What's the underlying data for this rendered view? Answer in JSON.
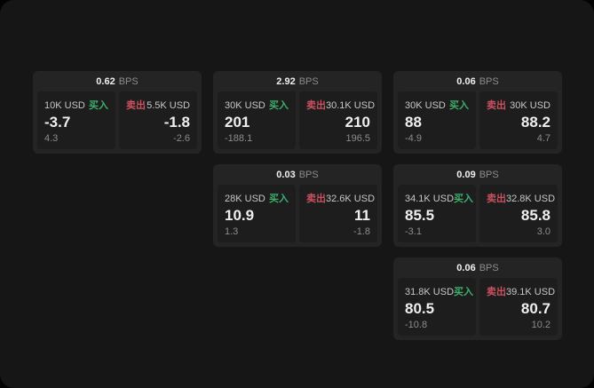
{
  "colors": {
    "panel-bg": "#161616",
    "card-bg": "#242424",
    "tile-bg": "#1d1d1d",
    "buy-green": "#3fae6b",
    "sell-red": "#c95160",
    "text-primary": "#efefef",
    "text-secondary": "#c7c7c7",
    "text-muted": "#8c8c8c"
  },
  "labels": {
    "buy": "买入",
    "sell": "卖出",
    "bps_unit": "BPS"
  },
  "cards": [
    {
      "col": 1,
      "row": 1,
      "bps": "0.62",
      "buy": {
        "amount": "10K USD",
        "price": "-3.7",
        "change": "4.3"
      },
      "sell": {
        "amount": "5.5K USD",
        "price": "-1.8",
        "change": "-2.6"
      }
    },
    {
      "col": 2,
      "row": 1,
      "bps": "2.92",
      "buy": {
        "amount": "30K USD",
        "price": "201",
        "change": "-188.1"
      },
      "sell": {
        "amount": "30.1K USD",
        "price": "210",
        "change": "196.5"
      }
    },
    {
      "col": 3,
      "row": 1,
      "bps": "0.06",
      "buy": {
        "amount": "30K USD",
        "price": "88",
        "change": "-4.9"
      },
      "sell": {
        "amount": "30K USD",
        "price": "88.2",
        "change": "4.7"
      }
    },
    {
      "col": 2,
      "row": 2,
      "bps": "0.03",
      "buy": {
        "amount": "28K USD",
        "price": "10.9",
        "change": "1.3"
      },
      "sell": {
        "amount": "32.6K USD",
        "price": "11",
        "change": "-1.8"
      }
    },
    {
      "col": 3,
      "row": 2,
      "bps": "0.09",
      "buy": {
        "amount": "34.1K USD",
        "price": "85.5",
        "change": "-3.1"
      },
      "sell": {
        "amount": "32.8K USD",
        "price": "85.8",
        "change": "3.0"
      }
    },
    {
      "col": 3,
      "row": 3,
      "bps": "0.06",
      "buy": {
        "amount": "31.8K USD",
        "price": "80.5",
        "change": "-10.8"
      },
      "sell": {
        "amount": "39.1K USD",
        "price": "80.7",
        "change": "10.2"
      }
    }
  ]
}
